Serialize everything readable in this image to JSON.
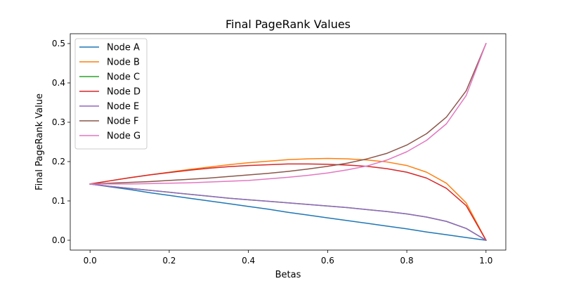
{
  "chart_data": {
    "type": "line",
    "title": "Final PageRank Values",
    "xlabel": "Betas",
    "ylabel": "Final PageRank Value",
    "xlim": [
      -0.05,
      1.05
    ],
    "ylim": [
      -0.025,
      0.525
    ],
    "xticks": [
      0.0,
      0.2,
      0.4,
      0.6,
      0.8,
      1.0
    ],
    "xtick_labels": [
      "0.0",
      "0.2",
      "0.4",
      "0.6",
      "0.8",
      "1.0"
    ],
    "yticks": [
      0.0,
      0.1,
      0.2,
      0.3,
      0.4,
      0.5
    ],
    "ytick_labels": [
      "0.0",
      "0.1",
      "0.2",
      "0.3",
      "0.4",
      "0.5"
    ],
    "grid": false,
    "legend_position": "upper-left",
    "x": [
      0.0,
      0.05,
      0.1,
      0.15,
      0.2,
      0.25,
      0.3,
      0.35,
      0.4,
      0.45,
      0.5,
      0.55,
      0.6,
      0.65,
      0.7,
      0.75,
      0.8,
      0.85,
      0.9,
      0.95,
      1.0
    ],
    "series": [
      {
        "name": "Node A",
        "color": "#1f77b4",
        "values": [
          0.143,
          0.136,
          0.129,
          0.121,
          0.114,
          0.107,
          0.1,
          0.093,
          0.086,
          0.079,
          0.071,
          0.064,
          0.057,
          0.05,
          0.043,
          0.036,
          0.029,
          0.021,
          0.014,
          0.007,
          0.0
        ]
      },
      {
        "name": "Node B",
        "color": "#ff7f0e",
        "values": [
          0.143,
          0.151,
          0.159,
          0.166,
          0.173,
          0.18,
          0.186,
          0.192,
          0.197,
          0.201,
          0.205,
          0.207,
          0.208,
          0.207,
          0.204,
          0.199,
          0.19,
          0.173,
          0.145,
          0.095,
          0.0
        ]
      },
      {
        "name": "Node C",
        "color": "#2ca02c",
        "values": [
          0.143,
          0.137,
          0.132,
          0.127,
          0.122,
          0.117,
          0.112,
          0.107,
          0.103,
          0.099,
          0.095,
          0.091,
          0.087,
          0.083,
          0.078,
          0.073,
          0.067,
          0.059,
          0.048,
          0.03,
          0.0
        ]
      },
      {
        "name": "Node D",
        "color": "#d62728",
        "values": [
          0.143,
          0.151,
          0.159,
          0.166,
          0.172,
          0.178,
          0.183,
          0.187,
          0.19,
          0.192,
          0.194,
          0.194,
          0.193,
          0.191,
          0.188,
          0.182,
          0.173,
          0.158,
          0.132,
          0.088,
          0.0
        ]
      },
      {
        "name": "Node E",
        "color": "#9467bd",
        "values": [
          0.143,
          0.137,
          0.132,
          0.127,
          0.122,
          0.117,
          0.112,
          0.107,
          0.103,
          0.099,
          0.095,
          0.091,
          0.087,
          0.083,
          0.078,
          0.073,
          0.067,
          0.059,
          0.048,
          0.03,
          0.0
        ]
      },
      {
        "name": "Node F",
        "color": "#8c564b",
        "values": [
          0.143,
          0.145,
          0.147,
          0.149,
          0.152,
          0.155,
          0.158,
          0.162,
          0.166,
          0.17,
          0.175,
          0.181,
          0.188,
          0.196,
          0.207,
          0.221,
          0.242,
          0.271,
          0.313,
          0.38,
          0.5
        ]
      },
      {
        "name": "Node G",
        "color": "#e377c2",
        "values": [
          0.143,
          0.143,
          0.143,
          0.144,
          0.145,
          0.146,
          0.148,
          0.15,
          0.152,
          0.156,
          0.16,
          0.165,
          0.171,
          0.179,
          0.189,
          0.204,
          0.225,
          0.254,
          0.296,
          0.368,
          0.5
        ]
      }
    ]
  }
}
